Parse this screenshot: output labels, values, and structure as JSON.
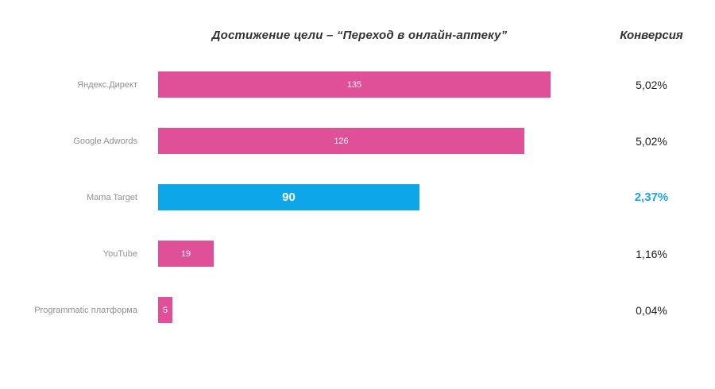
{
  "header": {
    "title": "Достижение цели – “Переход в онлайн-аптеку”",
    "conversion_label": "Конверсия"
  },
  "colors": {
    "bar_default": "#e05099",
    "bar_highlight": "#0ca6e9",
    "conversion_highlight": "#18a7e8",
    "conversion_default": "#1c1c1c",
    "category_label": "#909090"
  },
  "chart_data": {
    "type": "bar",
    "orientation": "horizontal",
    "title": "Достижение цели – “Переход в онлайн-аптеку”",
    "categories": [
      "Яндекс.Директ",
      "Google Adwords",
      "Mama Target",
      "YouTube",
      "Programmatic платформа"
    ],
    "values": [
      135,
      126,
      90,
      19,
      5
    ],
    "conversions": [
      "5,02%",
      "5,02%",
      "2,37%",
      "1,16%",
      "0,04%"
    ],
    "conversion_column_header": "Конверсия",
    "highlighted_index": 2,
    "highlighted_category": "Mama Target",
    "xlim": [
      0,
      135
    ],
    "grid": false,
    "legend": false,
    "value_labels_position": "inside-center"
  }
}
